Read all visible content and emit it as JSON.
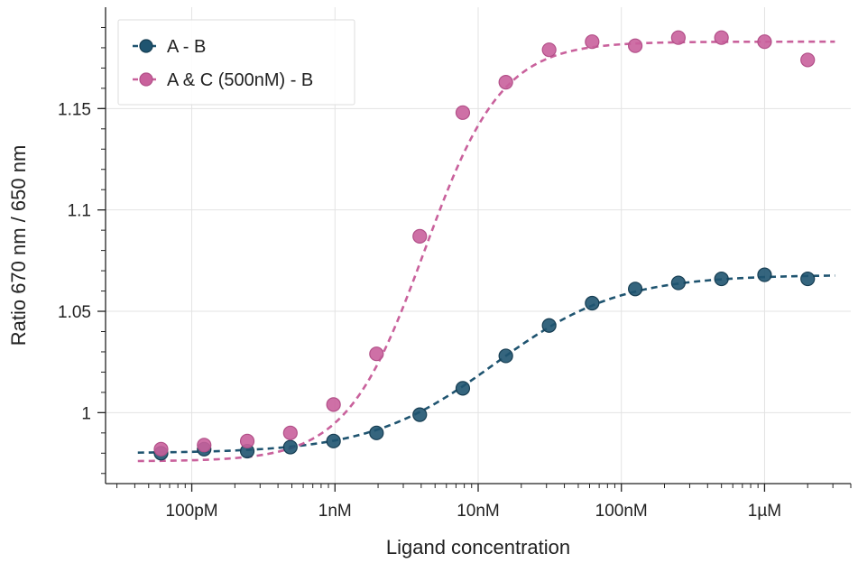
{
  "chart_data": {
    "type": "scatter",
    "title": "",
    "xlabel": "Ligand concentration",
    "ylabel": "Ratio 670 nm / 650 nm",
    "x_scale": "log",
    "xlim": [
      2.5e-11,
      4e-06
    ],
    "ylim": [
      0.965,
      1.2
    ],
    "grid": true,
    "legend_position": "top-left",
    "x_ticks": [
      {
        "value": 1e-10,
        "label": "100pM"
      },
      {
        "value": 1e-09,
        "label": "1nM"
      },
      {
        "value": 1e-08,
        "label": "10nM"
      },
      {
        "value": 1e-07,
        "label": "100nM"
      },
      {
        "value": 1e-06,
        "label": "1µM"
      }
    ],
    "y_ticks": [
      {
        "value": 1.0,
        "label": "1"
      },
      {
        "value": 1.05,
        "label": "1.05"
      },
      {
        "value": 1.1,
        "label": "1.1"
      },
      {
        "value": 1.15,
        "label": "1.15"
      }
    ],
    "series": [
      {
        "name": "A - B",
        "color": "#1f5470",
        "x": [
          6.1e-11,
          1.22e-10,
          2.44e-10,
          4.88e-10,
          9.77e-10,
          1.95e-09,
          3.91e-09,
          7.81e-09,
          1.56e-08,
          3.13e-08,
          6.25e-08,
          1.25e-07,
          2.5e-07,
          5e-07,
          1e-06,
          2e-06
        ],
        "y": [
          0.98,
          0.982,
          0.981,
          0.983,
          0.986,
          0.99,
          0.999,
          1.012,
          1.028,
          1.043,
          1.054,
          1.061,
          1.064,
          1.066,
          1.068,
          1.066
        ],
        "fit": {
          "bottom": 0.98,
          "top": 1.068,
          "ec50": 1.3e-08,
          "hill": 1.0
        }
      },
      {
        "name": "A & C (500nM) - B",
        "color": "#c9619c",
        "x": [
          6.1e-11,
          1.22e-10,
          2.44e-10,
          4.88e-10,
          9.77e-10,
          1.95e-09,
          3.91e-09,
          7.81e-09,
          1.56e-08,
          3.13e-08,
          6.25e-08,
          1.25e-07,
          2.5e-07,
          5e-07,
          1e-06,
          2e-06
        ],
        "y": [
          0.982,
          0.984,
          0.986,
          0.99,
          1.004,
          1.029,
          1.087,
          1.148,
          1.163,
          1.179,
          1.183,
          1.181,
          1.185,
          1.185,
          1.183,
          1.174
        ],
        "fit": {
          "bottom": 0.976,
          "top": 1.183,
          "ec50": 4.2e-09,
          "hill": 1.6
        }
      }
    ]
  }
}
